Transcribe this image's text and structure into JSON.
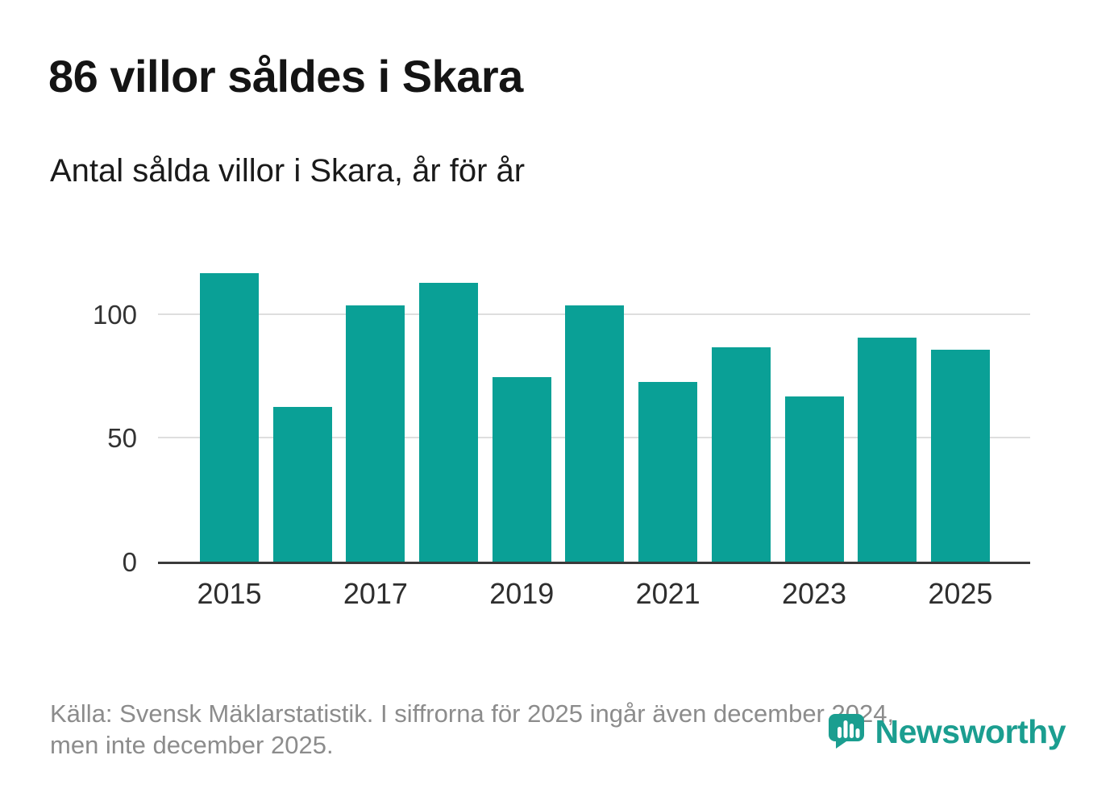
{
  "header": {
    "title": "86 villor såldes i Skara",
    "subtitle": "Antal sålda villor i Skara, år för år"
  },
  "chart_data": {
    "type": "bar",
    "title": "86 villor såldes i Skara",
    "subtitle": "Antal sålda villor i Skara, år för år",
    "x": [
      2015,
      2016,
      2017,
      2018,
      2019,
      2020,
      2021,
      2022,
      2023,
      2024,
      2025
    ],
    "values": [
      117,
      63,
      104,
      113,
      75,
      104,
      73,
      87,
      67,
      91,
      86
    ],
    "x_tick_labels": [
      "2015",
      "2017",
      "2019",
      "2021",
      "2023",
      "2025"
    ],
    "y_ticks": [
      0,
      50,
      100
    ],
    "ylim": [
      0,
      127
    ],
    "bar_color": "#0aa096",
    "grid": "horizontal",
    "legend": "none"
  },
  "footer": {
    "source_line1": "Källa: Svensk Mäklarstatistik. I siffrorna för 2025 ingår även december 2024,",
    "source_line2": "men inte december 2025.",
    "brand": "Newsworthy",
    "brand_color": "#1b9e90"
  }
}
